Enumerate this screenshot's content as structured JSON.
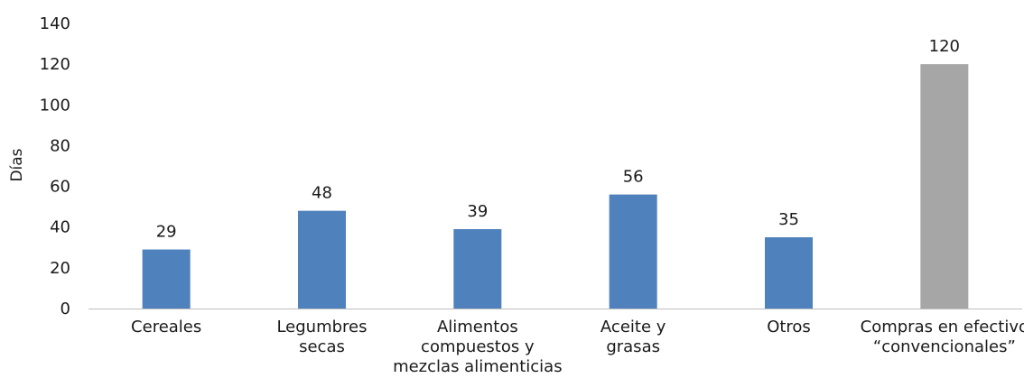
{
  "chart_data": {
    "type": "bar",
    "title": "",
    "xlabel": "",
    "ylabel": "Días",
    "ylim": [
      0,
      140
    ],
    "yticks": [
      "0",
      "20",
      "40",
      "60",
      "80",
      "100",
      "120",
      "140"
    ],
    "grid": false,
    "categories": [
      [
        "Cereales"
      ],
      [
        "Legumbres",
        "secas"
      ],
      [
        "Alimentos",
        "compuestos y",
        "mezclas alimenticias"
      ],
      [
        "Aceite y",
        "grasas"
      ],
      [
        "Otros"
      ],
      [
        "Compras en efectivo",
        "“convencionales”"
      ]
    ],
    "values": [
      29,
      48,
      39,
      56,
      35,
      120
    ],
    "data_labels": [
      "29",
      "48",
      "39",
      "56",
      "35",
      "120"
    ],
    "colors": [
      "#4f81bd",
      "#4f81bd",
      "#4f81bd",
      "#4f81bd",
      "#4f81bd",
      "#a6a6a6"
    ],
    "axis_color": "#bfbfbf"
  }
}
